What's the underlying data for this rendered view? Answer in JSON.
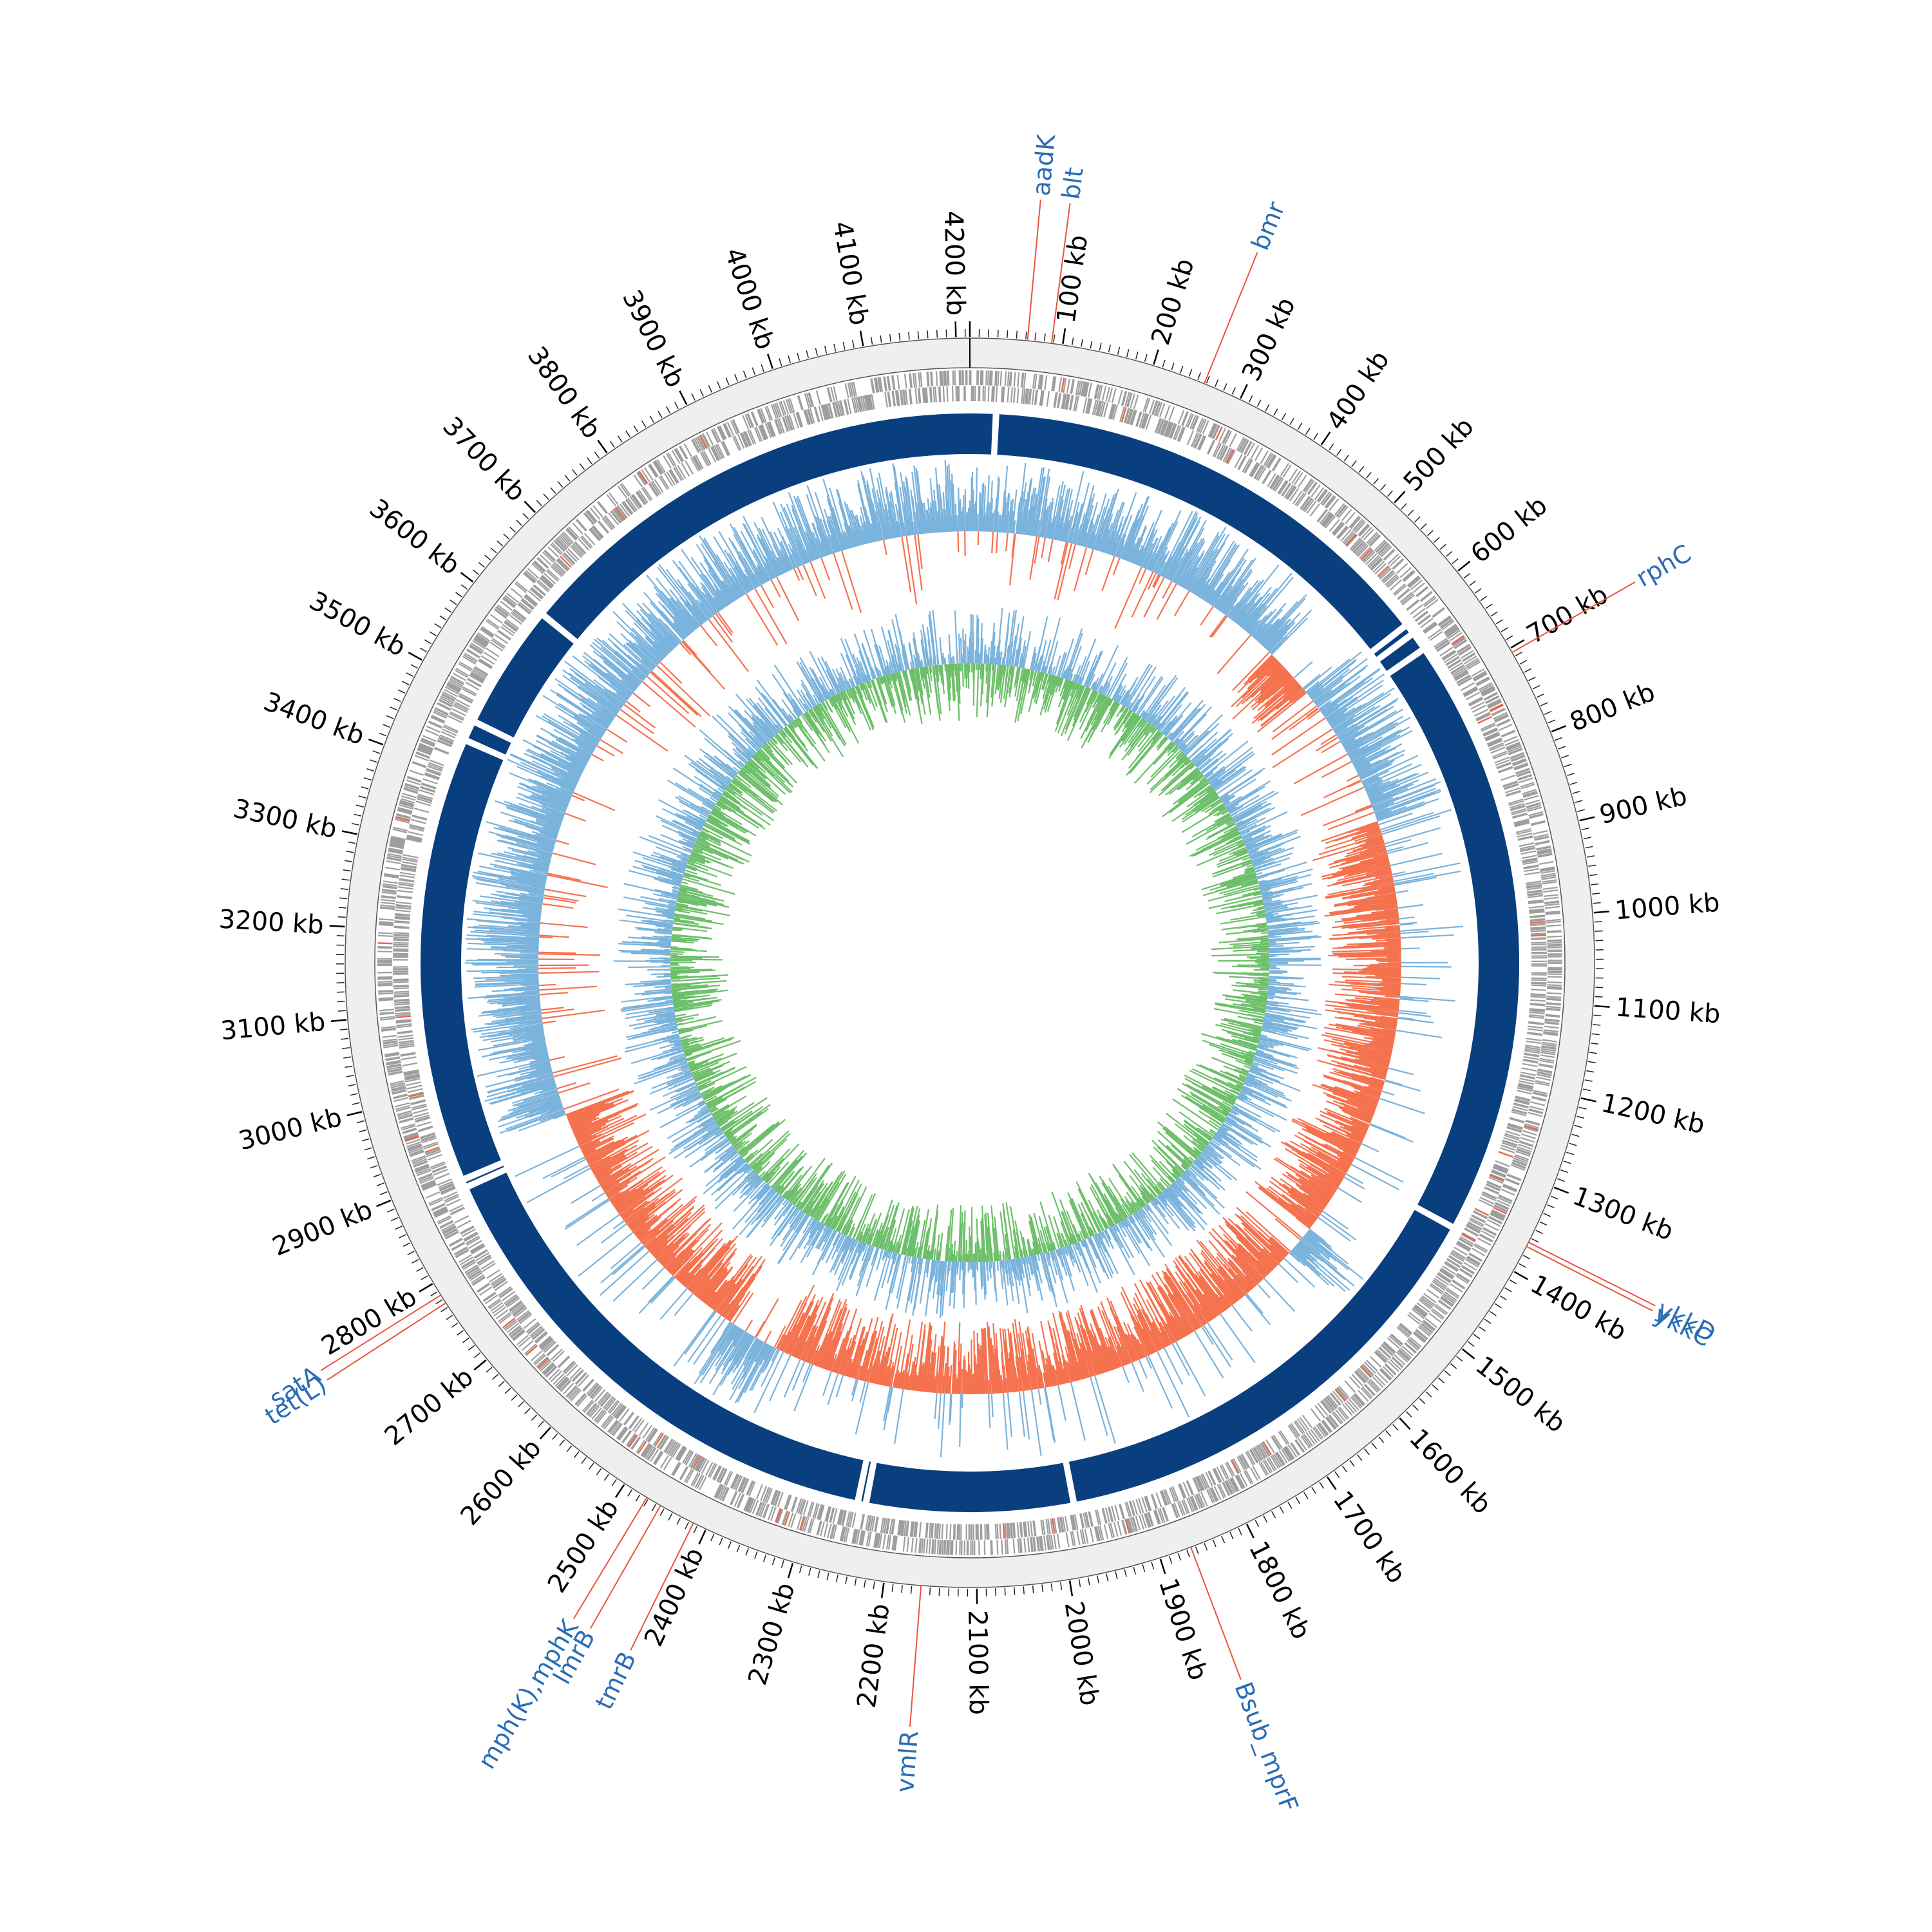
{
  "genome": {
    "length_kb": 4215,
    "tick_unit": "kb",
    "major_tick_step_kb": 100,
    "minor_tick_step_kb": 10
  },
  "tick_labels": [
    "100 kb",
    "200 kb",
    "300 kb",
    "400 kb",
    "500 kb",
    "600 kb",
    "700 kb",
    "800 kb",
    "900 kb",
    "1000 kb",
    "1100 kb",
    "1200 kb",
    "1300 kb",
    "1400 kb",
    "1500 kb",
    "1600 kb",
    "1700 kb",
    "1800 kb",
    "1900 kb",
    "2000 kb",
    "2100 kb",
    "2200 kb",
    "2300 kb",
    "2400 kb",
    "2500 kb",
    "2600 kb",
    "2700 kb",
    "2800 kb",
    "2900 kb",
    "3000 kb",
    "3100 kb",
    "3200 kb",
    "3300 kb",
    "3400 kb",
    "3500 kb",
    "3600 kb",
    "3700 kb",
    "3800 kb",
    "3900 kb",
    "4000 kb",
    "4100 kb",
    "4200 kb"
  ],
  "gene_annotations": [
    {
      "name": "aadK",
      "position_kb": 62
    },
    {
      "name": "blt",
      "position_kb": 88
    },
    {
      "name": "bmr",
      "position_kb": 258
    },
    {
      "name": "rphC",
      "position_kb": 705
    },
    {
      "name": "ykkD",
      "position_kb": 1365
    },
    {
      "name": "ykkC",
      "position_kb": 1370
    },
    {
      "name": "Bsub_mprF",
      "position_kb": 1865
    },
    {
      "name": "vmlR",
      "position_kb": 2160
    },
    {
      "name": "tmrB",
      "position_kb": 2415
    },
    {
      "name": "lmrB",
      "position_kb": 2455
    },
    {
      "name": "mph(K),mphK",
      "position_kb": 2472
    },
    {
      "name": "tet(L)",
      "position_kb": 2775
    },
    {
      "name": "satA",
      "position_kb": 2785
    }
  ],
  "backbone_gaps_kb": [
    32,
    612,
    625,
    648,
    1390,
    1980,
    2235,
    2245,
    2880,
    2890,
    3440,
    3465,
    3620
  ],
  "colors": {
    "outer_ring": "#efefef",
    "cds": "#9e9e9e",
    "cds_highlight": "#e8694a",
    "backbone": "#0a3f7f",
    "gc_positive": "#7ab3dc",
    "gc_negative": "#f5724f",
    "skew_positive": "#7ab3dc",
    "skew_negative": "#6dbf6a",
    "annotation_line": "#e8553a",
    "annotation_text": "#2a6db5"
  }
}
